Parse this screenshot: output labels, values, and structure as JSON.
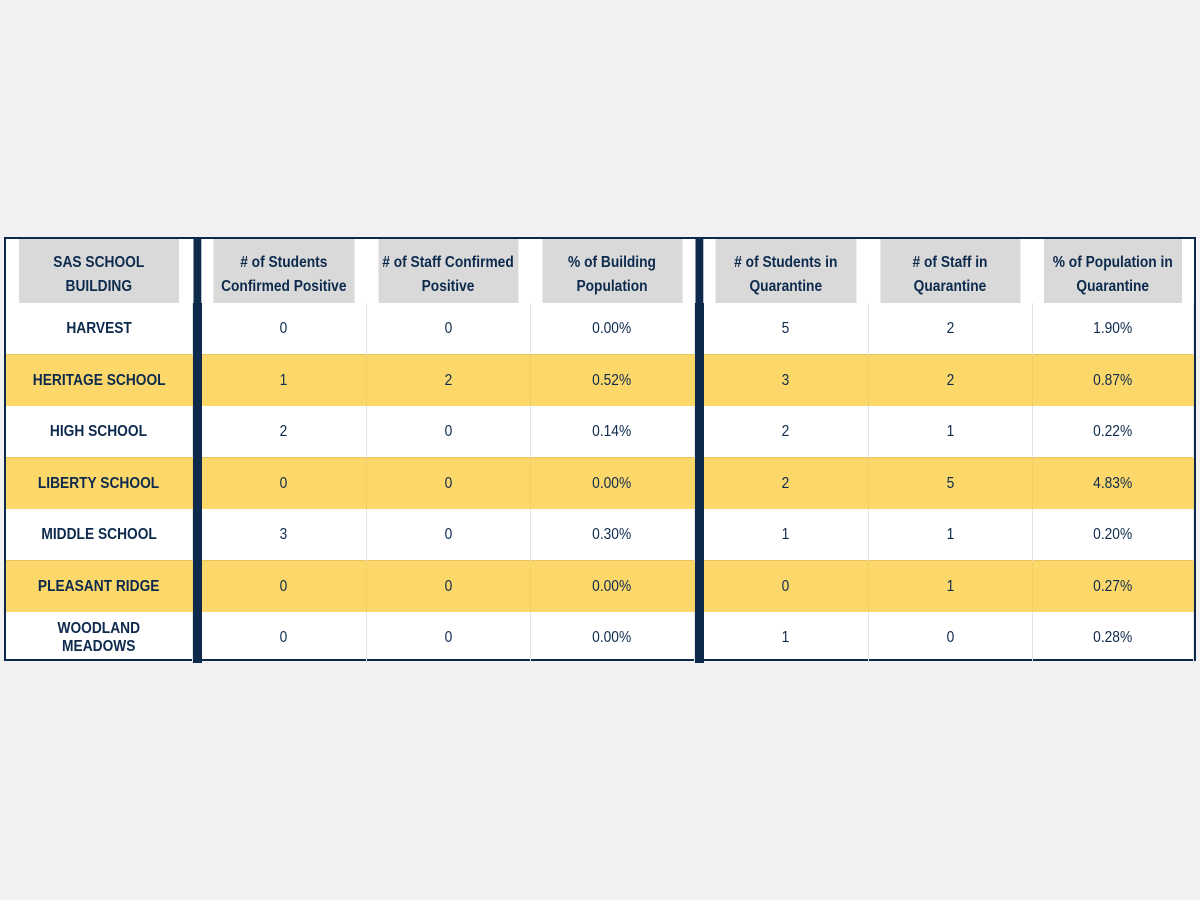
{
  "table": {
    "headers": {
      "building": "SAS SCHOOL BUILDING",
      "students_positive": "# of Students Confirmed Positive",
      "staff_positive": "# of Staff Confirmed Positive",
      "pct_building": "% of Building Population",
      "students_quarantine": "# of Students in Quarantine",
      "staff_quarantine": "# of Staff in Quarantine",
      "pct_quarantine": "% of Population in Quarantine"
    },
    "rows": [
      {
        "building": "HARVEST",
        "students_positive": "0",
        "staff_positive": "0",
        "pct_building": "0.00%",
        "students_quarantine": "5",
        "staff_quarantine": "2",
        "pct_quarantine": "1.90%"
      },
      {
        "building": "HERITAGE SCHOOL",
        "students_positive": "1",
        "staff_positive": "2",
        "pct_building": "0.52%",
        "students_quarantine": "3",
        "staff_quarantine": "2",
        "pct_quarantine": "0.87%"
      },
      {
        "building": "HIGH SCHOOL",
        "students_positive": "2",
        "staff_positive": "0",
        "pct_building": "0.14%",
        "students_quarantine": "2",
        "staff_quarantine": "1",
        "pct_quarantine": "0.22%"
      },
      {
        "building": "LIBERTY SCHOOL",
        "students_positive": "0",
        "staff_positive": "0",
        "pct_building": "0.00%",
        "students_quarantine": "2",
        "staff_quarantine": "5",
        "pct_quarantine": "4.83%"
      },
      {
        "building": "MIDDLE SCHOOL",
        "students_positive": "3",
        "staff_positive": "0",
        "pct_building": "0.30%",
        "students_quarantine": "1",
        "staff_quarantine": "1",
        "pct_quarantine": "0.20%"
      },
      {
        "building": "PLEASANT RIDGE",
        "students_positive": "0",
        "staff_positive": "0",
        "pct_building": "0.00%",
        "students_quarantine": "0",
        "staff_quarantine": "1",
        "pct_quarantine": "0.27%"
      },
      {
        "building": "WOODLAND MEADOWS",
        "students_positive": "0",
        "staff_positive": "0",
        "pct_building": "0.00%",
        "students_quarantine": "1",
        "staff_quarantine": "0",
        "pct_quarantine": "0.28%"
      }
    ]
  },
  "colors": {
    "navy": "#0d2a4d",
    "header_gray": "#d9d9d9",
    "highlight_yellow": "#fcd86b",
    "background": "#f2f2f2"
  }
}
